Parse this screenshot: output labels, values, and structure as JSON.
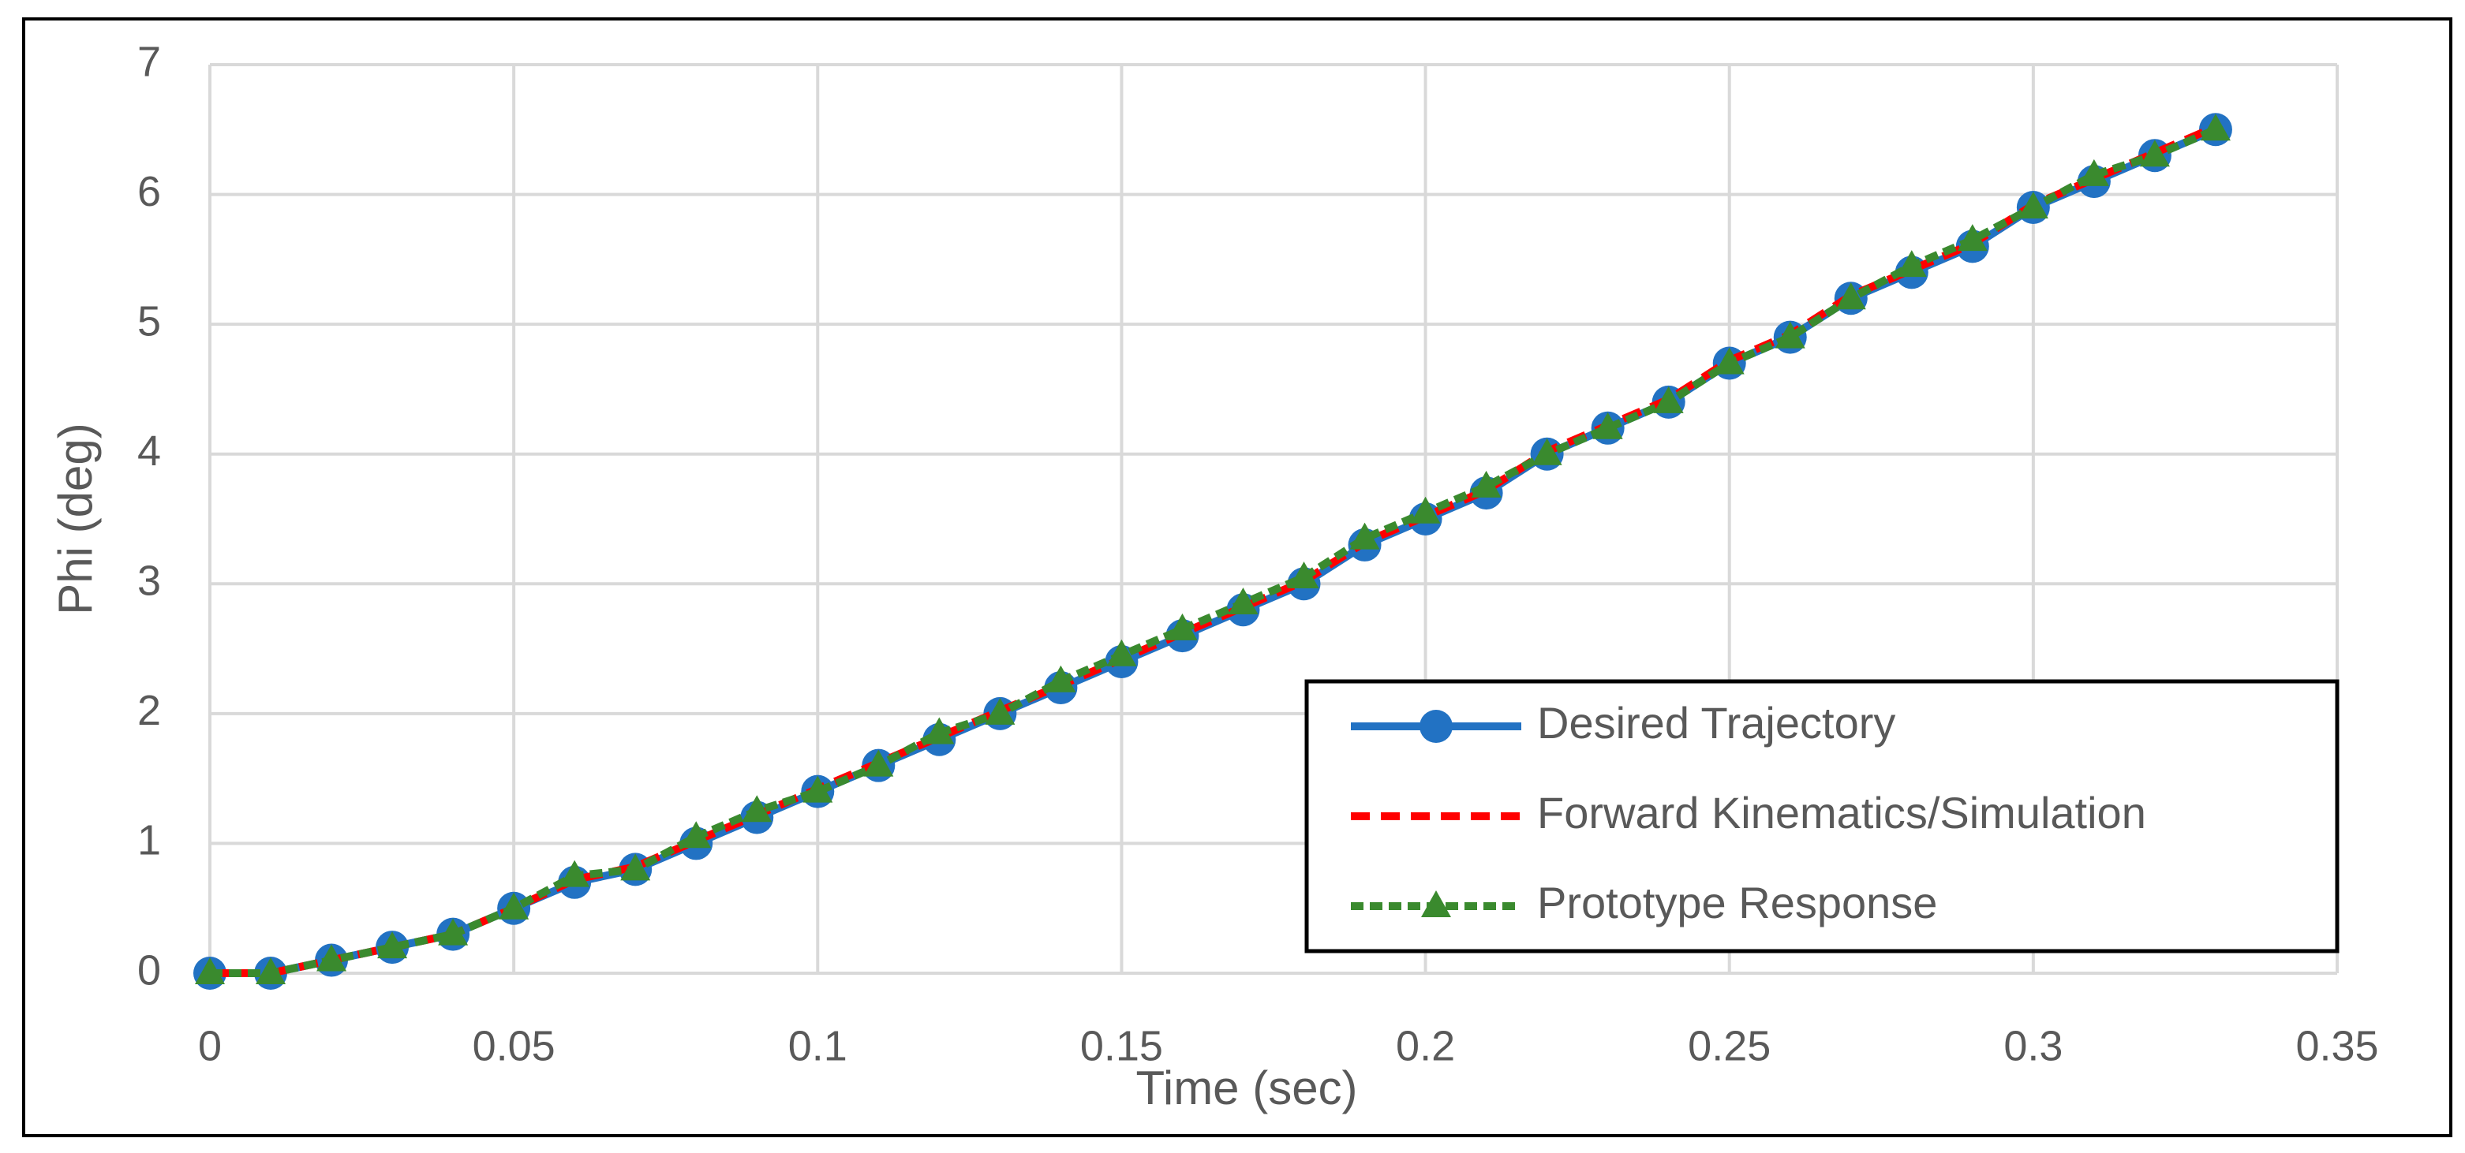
{
  "chart_data": {
    "type": "line",
    "x_label": "Time (sec)",
    "y_label": "Phi (deg)",
    "x": [
      0,
      0.01,
      0.02,
      0.03,
      0.04,
      0.05,
      0.06,
      0.07,
      0.08,
      0.09,
      0.1,
      0.11,
      0.12,
      0.13,
      0.14,
      0.15,
      0.16,
      0.17,
      0.18,
      0.19,
      0.2,
      0.21,
      0.22,
      0.23,
      0.24,
      0.25,
      0.26,
      0.27,
      0.28,
      0.29,
      0.3,
      0.31,
      0.32,
      0.33
    ],
    "series": [
      {
        "name": "Desired Trajectory",
        "color": "#2272c3",
        "marker": "circle",
        "dash": "solid",
        "values": [
          0,
          0,
          0.1,
          0.2,
          0.3,
          0.5,
          0.7,
          0.8,
          1.0,
          1.2,
          1.4,
          1.6,
          1.8,
          2.0,
          2.2,
          2.4,
          2.6,
          2.8,
          3.0,
          3.3,
          3.5,
          3.7,
          4.0,
          4.2,
          4.4,
          4.7,
          4.9,
          5.2,
          5.4,
          5.6,
          5.9,
          6.1,
          6.3,
          6.5
        ]
      },
      {
        "name": "Forward Kinematics/Simulation",
        "color": "#ff0000",
        "marker": "none",
        "dash": "dashed",
        "values": [
          0,
          0,
          0.1,
          0.2,
          0.3,
          0.5,
          0.72,
          0.82,
          1.02,
          1.22,
          1.42,
          1.62,
          1.82,
          2.02,
          2.22,
          2.42,
          2.62,
          2.82,
          3.02,
          3.32,
          3.52,
          3.72,
          4.02,
          4.22,
          4.42,
          4.72,
          4.92,
          5.22,
          5.42,
          5.62,
          5.92,
          6.12,
          6.32,
          6.52
        ]
      },
      {
        "name": "Prototype Response",
        "color": "#3a8a2e",
        "marker": "triangle",
        "dash": "dotted",
        "values": [
          0,
          0,
          0.1,
          0.2,
          0.3,
          0.5,
          0.75,
          0.8,
          1.05,
          1.25,
          1.4,
          1.6,
          1.85,
          2.0,
          2.25,
          2.45,
          2.65,
          2.85,
          3.05,
          3.35,
          3.55,
          3.75,
          4.0,
          4.2,
          4.4,
          4.7,
          4.9,
          5.2,
          5.45,
          5.65,
          5.9,
          6.15,
          6.3,
          6.5
        ]
      }
    ],
    "xlim": [
      0,
      0.35
    ],
    "xticks": [
      0,
      0.05,
      0.1,
      0.15,
      0.2,
      0.25,
      0.3,
      0.35
    ],
    "ylim": [
      0,
      7
    ],
    "yticks": [
      0,
      1,
      2,
      3,
      4,
      5,
      6,
      7
    ],
    "grid": true,
    "legend": "lower right"
  }
}
